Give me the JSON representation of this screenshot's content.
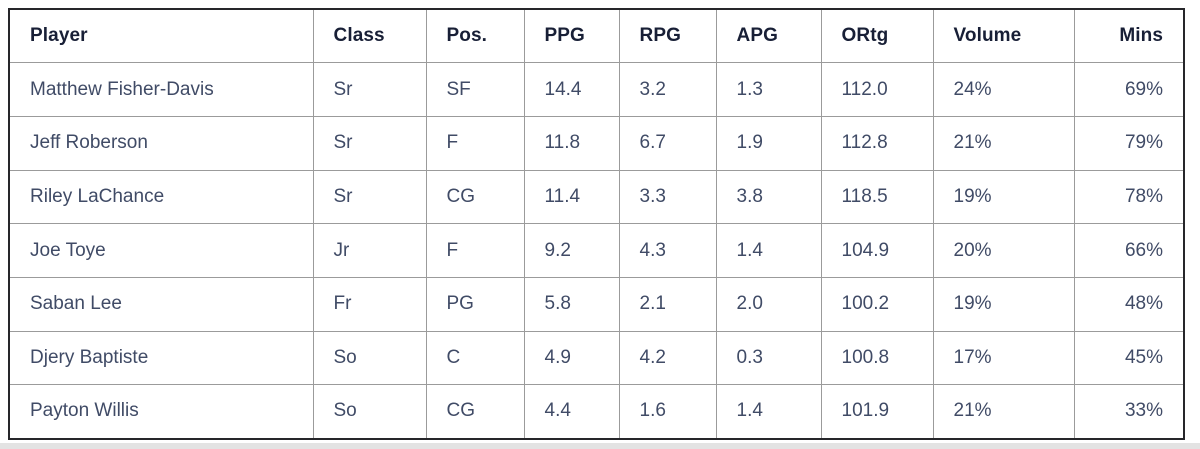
{
  "colors": {
    "header_text": "#181f36",
    "body_text": "#404b66",
    "grid_line": "#9b9b9b",
    "outer_border": "#26262a",
    "page_bg": "#ffffff",
    "bottom_band": "#e3e3e3"
  },
  "chart_data": {
    "type": "table",
    "title": "",
    "legend": "none",
    "grid": "on",
    "columns": [
      {
        "id": "player",
        "label": "Player",
        "align": "left"
      },
      {
        "id": "class",
        "label": "Class",
        "align": "left"
      },
      {
        "id": "pos",
        "label": "Pos.",
        "align": "left"
      },
      {
        "id": "ppg",
        "label": "PPG",
        "align": "left"
      },
      {
        "id": "rpg",
        "label": "RPG",
        "align": "left"
      },
      {
        "id": "apg",
        "label": "APG",
        "align": "left"
      },
      {
        "id": "ortg",
        "label": "ORtg",
        "align": "left"
      },
      {
        "id": "volume",
        "label": "Volume",
        "align": "left"
      },
      {
        "id": "mins",
        "label": "Mins",
        "align": "right"
      }
    ],
    "rows": [
      [
        "Matthew Fisher-Davis",
        "Sr",
        "SF",
        "14.4",
        "3.2",
        "1.3",
        "112.0",
        "24%",
        "69%"
      ],
      [
        "Jeff Roberson",
        "Sr",
        "F",
        "11.8",
        "6.7",
        "1.9",
        "112.8",
        "21%",
        "79%"
      ],
      [
        "Riley LaChance",
        "Sr",
        "CG",
        "11.4",
        "3.3",
        "3.8",
        "118.5",
        "19%",
        "78%"
      ],
      [
        "Joe Toye",
        "Jr",
        "F",
        "9.2",
        "4.3",
        "1.4",
        "104.9",
        "20%",
        "66%"
      ],
      [
        "Saban Lee",
        "Fr",
        "PG",
        "5.8",
        "2.1",
        "2.0",
        "100.2",
        "19%",
        "48%"
      ],
      [
        "Djery Baptiste",
        "So",
        "C",
        "4.9",
        "4.2",
        "0.3",
        "100.8",
        "17%",
        "45%"
      ],
      [
        "Payton Willis",
        "So",
        "CG",
        "4.4",
        "1.6",
        "1.4",
        "101.9",
        "21%",
        "33%"
      ]
    ]
  }
}
